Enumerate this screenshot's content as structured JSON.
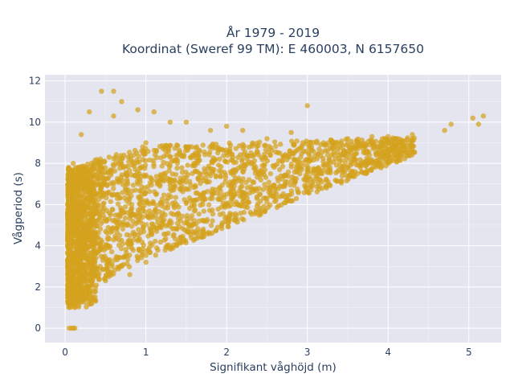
{
  "chart_data": {
    "type": "scatter",
    "title": "År 1979 - 2019",
    "subtitle": "Koordinat (Sweref 99 TM): E 460003, N 6157650",
    "xlabel": "Signifikant våghöjd (m)",
    "ylabel": "Vågperiod (s)",
    "xlim": [
      -0.25,
      5.4
    ],
    "ylim": [
      -0.7,
      12.3
    ],
    "xticks": [
      0,
      1,
      2,
      3,
      4,
      5
    ],
    "yticks": [
      0,
      2,
      4,
      6,
      8,
      10,
      12
    ],
    "grid": true,
    "legend": "none",
    "colors": {
      "marker": "#d4a21d",
      "plot_bg": "#e5e5f0",
      "grid": "#ffffff",
      "text": "#2a3f5f"
    },
    "series": [
      {
        "values": [
          [
            0.05,
            0.0
          ],
          [
            0.08,
            0.0
          ],
          [
            0.1,
            0.0
          ],
          [
            0.12,
            0.0
          ],
          [
            0.05,
            1.6
          ],
          [
            0.1,
            1.2
          ],
          [
            0.12,
            1.0
          ],
          [
            0.2,
            1.3
          ],
          [
            0.3,
            1.7
          ],
          [
            0.5,
            2.3
          ],
          [
            0.8,
            2.6
          ],
          [
            1.0,
            3.2
          ],
          [
            1.3,
            3.9
          ],
          [
            1.6,
            4.6
          ],
          [
            2.0,
            5.4
          ],
          [
            2.5,
            6.3
          ],
          [
            3.0,
            7.1
          ],
          [
            3.5,
            7.8
          ],
          [
            4.0,
            8.6
          ],
          [
            4.3,
            9.2
          ],
          [
            0.05,
            7.0
          ],
          [
            0.1,
            8.0
          ],
          [
            0.2,
            9.4
          ],
          [
            0.3,
            10.5
          ],
          [
            0.45,
            11.5
          ],
          [
            0.6,
            11.5
          ],
          [
            0.7,
            11.0
          ],
          [
            0.9,
            10.6
          ],
          [
            1.1,
            10.5
          ],
          [
            1.3,
            10.0
          ],
          [
            1.5,
            10.0
          ],
          [
            1.8,
            9.6
          ],
          [
            2.0,
            9.8
          ],
          [
            2.2,
            9.6
          ],
          [
            2.5,
            9.2
          ],
          [
            2.8,
            9.5
          ],
          [
            3.0,
            10.8
          ],
          [
            3.2,
            9.0
          ],
          [
            3.5,
            9.2
          ],
          [
            3.8,
            9.3
          ],
          [
            4.0,
            9.3
          ],
          [
            4.3,
            9.4
          ],
          [
            0.25,
            5.0
          ],
          [
            0.4,
            6.0
          ],
          [
            0.6,
            6.5
          ],
          [
            0.9,
            7.0
          ],
          [
            1.3,
            7.2
          ],
          [
            1.8,
            7.4
          ],
          [
            2.2,
            7.6
          ],
          [
            2.6,
            7.9
          ],
          [
            3.0,
            8.2
          ],
          [
            3.3,
            8.4
          ],
          [
            0.5,
            4.0
          ],
          [
            0.8,
            4.5
          ],
          [
            1.2,
            5.2
          ],
          [
            1.6,
            6.0
          ],
          [
            2.2,
            6.6
          ],
          [
            2.0,
            8.5
          ],
          [
            1.5,
            8.8
          ],
          [
            1.0,
            9.0
          ],
          [
            0.6,
            10.3
          ],
          [
            4.7,
            9.6
          ],
          [
            4.78,
            9.9
          ],
          [
            5.05,
            10.2
          ],
          [
            5.12,
            9.9
          ],
          [
            5.18,
            10.3
          ],
          [
            0.2,
            2.9
          ],
          [
            0.7,
            3.0
          ],
          [
            0.3,
            2.0
          ]
        ]
      }
    ]
  }
}
